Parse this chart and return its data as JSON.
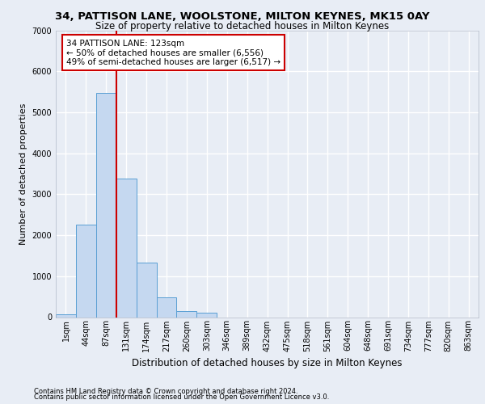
{
  "title_line1": "34, PATTISON LANE, WOOLSTONE, MILTON KEYNES, MK15 0AY",
  "title_line2": "Size of property relative to detached houses in Milton Keynes",
  "xlabel": "Distribution of detached houses by size in Milton Keynes",
  "ylabel": "Number of detached properties",
  "footnote1": "Contains HM Land Registry data © Crown copyright and database right 2024.",
  "footnote2": "Contains public sector information licensed under the Open Government Licence v3.0.",
  "categories": [
    "1sqm",
    "44sqm",
    "87sqm",
    "131sqm",
    "174sqm",
    "217sqm",
    "260sqm",
    "303sqm",
    "346sqm",
    "389sqm",
    "432sqm",
    "475sqm",
    "518sqm",
    "561sqm",
    "604sqm",
    "648sqm",
    "691sqm",
    "734sqm",
    "777sqm",
    "820sqm",
    "863sqm"
  ],
  "values": [
    70,
    2250,
    5480,
    3380,
    1340,
    490,
    150,
    100,
    0,
    0,
    0,
    0,
    0,
    0,
    0,
    0,
    0,
    0,
    0,
    0,
    0
  ],
  "bar_color": "#c5d8f0",
  "bar_edge_color": "#5a9fd4",
  "annotation_text": "34 PATTISON LANE: 123sqm\n← 50% of detached houses are smaller (6,556)\n49% of semi-detached houses are larger (6,517) →",
  "vline_x": 2.5,
  "vline_color": "#cc0000",
  "annotation_box_facecolor": "#ffffff",
  "annotation_box_edgecolor": "#cc0000",
  "ylim": [
    0,
    7000
  ],
  "yticks": [
    0,
    1000,
    2000,
    3000,
    4000,
    5000,
    6000,
    7000
  ],
  "background_color": "#e8edf5",
  "plot_background": "#e8edf5",
  "grid_color": "#ffffff",
  "title1_fontsize": 9.5,
  "title2_fontsize": 8.5,
  "ylabel_fontsize": 8,
  "xlabel_fontsize": 8.5,
  "tick_fontsize": 7,
  "annot_fontsize": 7.5,
  "footnote_fontsize": 6
}
